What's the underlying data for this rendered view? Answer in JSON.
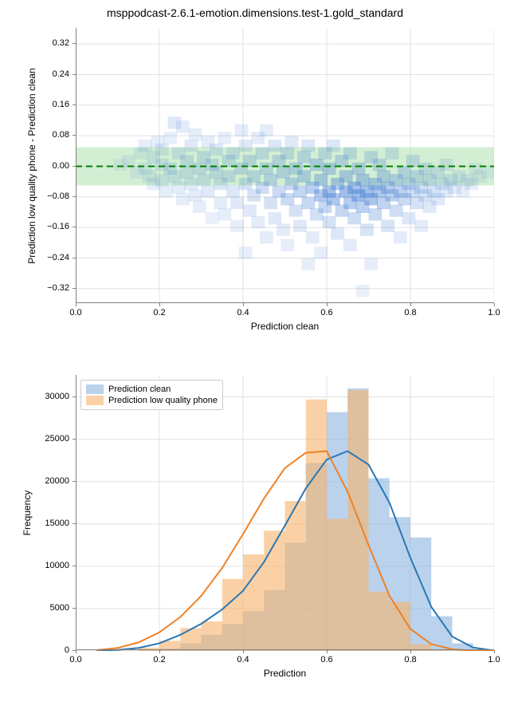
{
  "suptitle": "msppodcast-2.6.1-emotion.dimensions.test-1.gold_standard",
  "title_fontsize": 14,
  "label_fontsize": 12,
  "tick_fontsize": 11,
  "background_color": "#ffffff",
  "grid_color": "#e0e0e0",
  "spine_color": "#808080",
  "top_panel": {
    "type": "heatmap-scatter",
    "x_label": "Prediction clean",
    "y_label": "Prediction low quality phone - Prediction clean",
    "xlim": [
      0.0,
      1.0
    ],
    "ylim": [
      -0.36,
      0.36
    ],
    "xticks": [
      0.0,
      0.2,
      0.4,
      0.6,
      0.8,
      1.0
    ],
    "xtick_labels": [
      "0.0",
      "0.2",
      "0.4",
      "0.6",
      "0.8",
      "1.0"
    ],
    "yticks": [
      -0.32,
      -0.24,
      -0.16,
      -0.08,
      0.0,
      0.08,
      0.16,
      0.24,
      0.32
    ],
    "ytick_labels": [
      "−0.32",
      "−0.24",
      "−0.16",
      "−0.08",
      "0.00",
      "0.08",
      "0.16",
      "0.24",
      "0.32"
    ],
    "band": {
      "ymin": -0.05,
      "ymax": 0.05,
      "fill": "#a8e0a8",
      "fill_opacity": 0.5
    },
    "zero_line": {
      "y": 0.0,
      "color": "#008000",
      "dash": "8,5",
      "width": 2
    },
    "hex_cell": {
      "w": 0.02,
      "h": 0.02
    },
    "hex_color": "#4f86d6",
    "cells": [
      [
        0.1,
        0.01,
        0.1
      ],
      [
        0.12,
        0.02,
        0.12
      ],
      [
        0.14,
        -0.01,
        0.12
      ],
      [
        0.15,
        0.04,
        0.12
      ],
      [
        0.16,
        0.0,
        0.14
      ],
      [
        0.16,
        0.06,
        0.14
      ],
      [
        0.17,
        -0.02,
        0.14
      ],
      [
        0.18,
        0.03,
        0.16
      ],
      [
        0.18,
        -0.04,
        0.14
      ],
      [
        0.19,
        0.07,
        0.14
      ],
      [
        0.2,
        0.01,
        0.18
      ],
      [
        0.2,
        -0.03,
        0.16
      ],
      [
        0.2,
        0.05,
        0.16
      ],
      [
        0.21,
        -0.06,
        0.14
      ],
      [
        0.22,
        0.08,
        0.14
      ],
      [
        0.22,
        0.0,
        0.2
      ],
      [
        0.23,
        -0.02,
        0.18
      ],
      [
        0.23,
        0.12,
        0.18
      ],
      [
        0.24,
        0.04,
        0.18
      ],
      [
        0.24,
        -0.05,
        0.16
      ],
      [
        0.25,
        0.11,
        0.16
      ],
      [
        0.25,
        -0.08,
        0.14
      ],
      [
        0.26,
        0.02,
        0.22
      ],
      [
        0.26,
        -0.01,
        0.2
      ],
      [
        0.27,
        0.06,
        0.18
      ],
      [
        0.27,
        -0.04,
        0.18
      ],
      [
        0.28,
        0.09,
        0.14
      ],
      [
        0.28,
        -0.07,
        0.16
      ],
      [
        0.29,
        0.0,
        0.22
      ],
      [
        0.29,
        -0.1,
        0.14
      ],
      [
        0.3,
        0.03,
        0.22
      ],
      [
        0.3,
        -0.03,
        0.2
      ],
      [
        0.31,
        0.07,
        0.16
      ],
      [
        0.31,
        -0.06,
        0.18
      ],
      [
        0.32,
        -0.13,
        0.12
      ],
      [
        0.32,
        0.01,
        0.24
      ],
      [
        0.33,
        -0.01,
        0.22
      ],
      [
        0.33,
        0.05,
        0.18
      ],
      [
        0.34,
        -0.09,
        0.16
      ],
      [
        0.34,
        -0.04,
        0.2
      ],
      [
        0.35,
        0.08,
        0.14
      ],
      [
        0.35,
        -0.12,
        0.14
      ],
      [
        0.36,
        0.02,
        0.24
      ],
      [
        0.36,
        -0.02,
        0.24
      ],
      [
        0.37,
        -0.06,
        0.2
      ],
      [
        0.37,
        0.04,
        0.2
      ],
      [
        0.38,
        -0.15,
        0.14
      ],
      [
        0.38,
        -0.09,
        0.18
      ],
      [
        0.39,
        0.0,
        0.26
      ],
      [
        0.39,
        0.1,
        0.16
      ],
      [
        0.4,
        -0.04,
        0.24
      ],
      [
        0.4,
        0.06,
        0.18
      ],
      [
        0.4,
        -0.22,
        0.14
      ],
      [
        0.41,
        -0.11,
        0.18
      ],
      [
        0.41,
        0.02,
        0.26
      ],
      [
        0.42,
        -0.07,
        0.24
      ],
      [
        0.42,
        -0.02,
        0.26
      ],
      [
        0.43,
        0.08,
        0.16
      ],
      [
        0.43,
        -0.14,
        0.16
      ],
      [
        0.44,
        -0.05,
        0.28
      ],
      [
        0.44,
        0.04,
        0.22
      ],
      [
        0.45,
        -0.18,
        0.16
      ],
      [
        0.45,
        0.0,
        0.28
      ],
      [
        0.45,
        0.1,
        0.16
      ],
      [
        0.46,
        -0.09,
        0.24
      ],
      [
        0.46,
        -0.03,
        0.28
      ],
      [
        0.47,
        0.06,
        0.2
      ],
      [
        0.47,
        -0.13,
        0.18
      ],
      [
        0.48,
        -0.06,
        0.3
      ],
      [
        0.48,
        0.02,
        0.28
      ],
      [
        0.49,
        -0.16,
        0.16
      ],
      [
        0.49,
        -0.01,
        0.3
      ],
      [
        0.5,
        -0.2,
        0.14
      ],
      [
        0.5,
        -0.08,
        0.3
      ],
      [
        0.5,
        0.04,
        0.24
      ],
      [
        0.51,
        -0.04,
        0.32
      ],
      [
        0.51,
        0.07,
        0.18
      ],
      [
        0.52,
        -0.11,
        0.24
      ],
      [
        0.52,
        0.0,
        0.32
      ],
      [
        0.53,
        -0.06,
        0.34
      ],
      [
        0.53,
        -0.15,
        0.18
      ],
      [
        0.54,
        0.03,
        0.26
      ],
      [
        0.54,
        -0.02,
        0.34
      ],
      [
        0.55,
        -0.09,
        0.32
      ],
      [
        0.55,
        -0.25,
        0.14
      ],
      [
        0.55,
        0.06,
        0.2
      ],
      [
        0.56,
        -0.05,
        0.4
      ],
      [
        0.56,
        -0.18,
        0.16
      ],
      [
        0.57,
        -0.12,
        0.26
      ],
      [
        0.57,
        0.01,
        0.34
      ],
      [
        0.58,
        -0.07,
        0.44
      ],
      [
        0.58,
        -0.03,
        0.38
      ],
      [
        0.58,
        -0.22,
        0.14
      ],
      [
        0.59,
        0.04,
        0.24
      ],
      [
        0.59,
        -0.1,
        0.32
      ],
      [
        0.6,
        -0.06,
        0.5
      ],
      [
        0.6,
        -0.14,
        0.24
      ],
      [
        0.6,
        0.0,
        0.36
      ],
      [
        0.61,
        -0.08,
        0.46
      ],
      [
        0.61,
        0.06,
        0.2
      ],
      [
        0.62,
        -0.04,
        0.42
      ],
      [
        0.62,
        -0.17,
        0.2
      ],
      [
        0.63,
        -0.11,
        0.32
      ],
      [
        0.63,
        0.02,
        0.3
      ],
      [
        0.64,
        -0.06,
        0.54
      ],
      [
        0.64,
        -0.02,
        0.38
      ],
      [
        0.65,
        -0.2,
        0.16
      ],
      [
        0.65,
        -0.09,
        0.42
      ],
      [
        0.65,
        0.04,
        0.24
      ],
      [
        0.66,
        -0.05,
        0.5
      ],
      [
        0.66,
        -0.13,
        0.28
      ],
      [
        0.67,
        -0.07,
        0.56
      ],
      [
        0.67,
        0.0,
        0.34
      ],
      [
        0.68,
        -0.1,
        0.38
      ],
      [
        0.68,
        -0.03,
        0.4
      ],
      [
        0.68,
        -0.32,
        0.12
      ],
      [
        0.69,
        -0.06,
        0.52
      ],
      [
        0.69,
        -0.16,
        0.22
      ],
      [
        0.7,
        -0.08,
        0.48
      ],
      [
        0.7,
        0.03,
        0.26
      ],
      [
        0.7,
        -0.25,
        0.14
      ],
      [
        0.71,
        -0.04,
        0.4
      ],
      [
        0.71,
        -0.12,
        0.3
      ],
      [
        0.72,
        -0.06,
        0.46
      ],
      [
        0.72,
        0.01,
        0.28
      ],
      [
        0.73,
        -0.09,
        0.36
      ],
      [
        0.73,
        -0.02,
        0.34
      ],
      [
        0.74,
        -0.15,
        0.22
      ],
      [
        0.74,
        -0.05,
        0.4
      ],
      [
        0.75,
        -0.07,
        0.38
      ],
      [
        0.75,
        0.04,
        0.2
      ],
      [
        0.76,
        -0.11,
        0.28
      ],
      [
        0.76,
        -0.03,
        0.32
      ],
      [
        0.77,
        -0.06,
        0.36
      ],
      [
        0.77,
        -0.18,
        0.16
      ],
      [
        0.78,
        -0.01,
        0.28
      ],
      [
        0.78,
        -0.08,
        0.3
      ],
      [
        0.79,
        -0.04,
        0.3
      ],
      [
        0.79,
        -0.13,
        0.2
      ],
      [
        0.8,
        -0.06,
        0.28
      ],
      [
        0.8,
        0.02,
        0.22
      ],
      [
        0.81,
        -0.09,
        0.24
      ],
      [
        0.81,
        -0.02,
        0.26
      ],
      [
        0.82,
        -0.05,
        0.26
      ],
      [
        0.82,
        -0.15,
        0.16
      ],
      [
        0.83,
        -0.07,
        0.22
      ],
      [
        0.83,
        0.0,
        0.22
      ],
      [
        0.84,
        -0.03,
        0.24
      ],
      [
        0.84,
        -0.1,
        0.18
      ],
      [
        0.85,
        -0.06,
        0.22
      ],
      [
        0.86,
        -0.01,
        0.2
      ],
      [
        0.86,
        -0.08,
        0.18
      ],
      [
        0.87,
        -0.04,
        0.2
      ],
      [
        0.88,
        -0.06,
        0.18
      ],
      [
        0.88,
        0.01,
        0.16
      ],
      [
        0.89,
        -0.03,
        0.18
      ],
      [
        0.9,
        -0.05,
        0.16
      ],
      [
        0.91,
        -0.02,
        0.16
      ],
      [
        0.92,
        -0.06,
        0.14
      ],
      [
        0.93,
        -0.03,
        0.14
      ],
      [
        0.94,
        -0.04,
        0.14
      ],
      [
        0.95,
        0.0,
        0.12
      ],
      [
        0.96,
        -0.02,
        0.12
      ],
      [
        0.98,
        -0.01,
        0.1
      ]
    ]
  },
  "bottom_panel": {
    "type": "histogram",
    "x_label": "Prediction",
    "y_label": "Frequency",
    "xlim": [
      0.0,
      1.0
    ],
    "ylim": [
      0,
      32500
    ],
    "xticks": [
      0.0,
      0.2,
      0.4,
      0.6,
      0.8,
      1.0
    ],
    "xtick_labels": [
      "0.0",
      "0.2",
      "0.4",
      "0.6",
      "0.8",
      "1.0"
    ],
    "yticks": [
      0,
      5000,
      10000,
      15000,
      20000,
      25000,
      30000
    ],
    "ytick_labels": [
      "0",
      "5000",
      "10000",
      "15000",
      "20000",
      "25000",
      "30000"
    ],
    "bin_width": 0.05,
    "series": [
      {
        "name": "Prediction clean",
        "fill": "#8cb4df",
        "fill_opacity": 0.6,
        "line_color": "#2a77b4",
        "bins": [
          [
            0.1,
            20
          ],
          [
            0.15,
            80
          ],
          [
            0.2,
            300
          ],
          [
            0.25,
            900
          ],
          [
            0.3,
            1900
          ],
          [
            0.35,
            3200
          ],
          [
            0.4,
            4700
          ],
          [
            0.45,
            7200
          ],
          [
            0.5,
            12800
          ],
          [
            0.55,
            22200
          ],
          [
            0.6,
            28200
          ],
          [
            0.65,
            31000
          ],
          [
            0.7,
            20400
          ],
          [
            0.75,
            15800
          ],
          [
            0.8,
            13400
          ],
          [
            0.85,
            4100
          ],
          [
            0.9,
            900
          ],
          [
            0.95,
            150
          ]
        ],
        "kde_points": [
          [
            0.05,
            50
          ],
          [
            0.1,
            120
          ],
          [
            0.15,
            350
          ],
          [
            0.2,
            900
          ],
          [
            0.25,
            1900
          ],
          [
            0.3,
            3200
          ],
          [
            0.35,
            4900
          ],
          [
            0.4,
            7100
          ],
          [
            0.45,
            10500
          ],
          [
            0.5,
            14800
          ],
          [
            0.55,
            19200
          ],
          [
            0.6,
            22600
          ],
          [
            0.65,
            23600
          ],
          [
            0.7,
            22000
          ],
          [
            0.75,
            17500
          ],
          [
            0.8,
            11000
          ],
          [
            0.85,
            5200
          ],
          [
            0.9,
            1700
          ],
          [
            0.95,
            400
          ],
          [
            1.0,
            50
          ]
        ]
      },
      {
        "name": "Prediction low quality phone",
        "fill": "#f7b36a",
        "fill_opacity": 0.6,
        "line_color": "#ee8126",
        "bins": [
          [
            0.1,
            50
          ],
          [
            0.15,
            400
          ],
          [
            0.2,
            1200
          ],
          [
            0.25,
            2700
          ],
          [
            0.3,
            3500
          ],
          [
            0.35,
            8500
          ],
          [
            0.4,
            11400
          ],
          [
            0.45,
            14200
          ],
          [
            0.5,
            17700
          ],
          [
            0.55,
            29700
          ],
          [
            0.6,
            15600
          ],
          [
            0.65,
            30800
          ],
          [
            0.7,
            7000
          ],
          [
            0.75,
            5800
          ],
          [
            0.8,
            800
          ],
          [
            0.85,
            200
          ],
          [
            0.9,
            40
          ]
        ],
        "kde_points": [
          [
            0.05,
            100
          ],
          [
            0.1,
            350
          ],
          [
            0.15,
            1000
          ],
          [
            0.2,
            2200
          ],
          [
            0.25,
            4000
          ],
          [
            0.3,
            6500
          ],
          [
            0.35,
            9800
          ],
          [
            0.4,
            13800
          ],
          [
            0.45,
            18000
          ],
          [
            0.5,
            21600
          ],
          [
            0.55,
            23400
          ],
          [
            0.6,
            23600
          ],
          [
            0.65,
            18800
          ],
          [
            0.7,
            12500
          ],
          [
            0.75,
            6500
          ],
          [
            0.8,
            2600
          ],
          [
            0.85,
            800
          ],
          [
            0.9,
            200
          ],
          [
            0.95,
            40
          ],
          [
            1.0,
            10
          ]
        ]
      }
    ],
    "legend": {
      "position": "upper-left",
      "items": [
        "Prediction clean",
        "Prediction low quality phone"
      ]
    }
  }
}
